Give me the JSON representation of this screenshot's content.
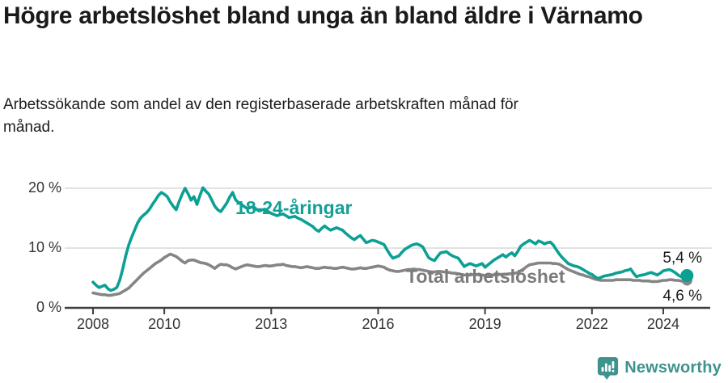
{
  "header": {
    "title": "Högre arbetslöshet bland unga än bland äldre i Värnamo",
    "subtitle": "Arbetssökande som andel av den registerbaserade arbetskraften månad för månad."
  },
  "chart_data": {
    "type": "line",
    "title": "Högre arbetslöshet bland unga än bland äldre i Värnamo",
    "subtitle": "Arbetssökande som andel av den registerbaserade arbetskraften månad för månad.",
    "unit": "%",
    "frequency": "monthly",
    "x_start_year": 2008,
    "x_start_month": 1,
    "x_end_year": 2024,
    "x_end_month": 9,
    "ylim": [
      0,
      21.5
    ],
    "grid": "horizontal",
    "legend_position": "inline-labels",
    "y_ticks": [
      {
        "value": 20,
        "label": "20 %"
      },
      {
        "value": 10,
        "label": "10 %"
      },
      {
        "value": 0,
        "label": "0 %"
      }
    ],
    "x_ticks": [
      {
        "year": 2008,
        "label": "2008"
      },
      {
        "year": 2010,
        "label": "2010"
      },
      {
        "year": 2013,
        "label": "2013"
      },
      {
        "year": 2016,
        "label": "2016"
      },
      {
        "year": 2019,
        "label": "2019"
      },
      {
        "year": 2022,
        "label": "2022"
      },
      {
        "year": 2024,
        "label": "2024"
      }
    ],
    "series": [
      {
        "name": "18-24-åringar",
        "color": "#0CA094",
        "label_color": "#12A096",
        "end_label": "5,4 %",
        "end_value": 5.4,
        "values": [
          4.3,
          3.8,
          3.4,
          3.6,
          3.8,
          3.2,
          2.9,
          3.1,
          3.4,
          4.6,
          6.5,
          8.7,
          10.5,
          11.8,
          13.0,
          14.2,
          15.0,
          15.5,
          15.9,
          16.5,
          17.3,
          18.0,
          18.8,
          19.3,
          19.0,
          18.6,
          17.7,
          17.0,
          16.4,
          17.8,
          19.0,
          20.0,
          19.1,
          18.0,
          18.6,
          17.3,
          18.8,
          20.1,
          19.5,
          19.0,
          18.0,
          17.0,
          16.4,
          16.1,
          16.8,
          17.5,
          18.5,
          19.3,
          18.1,
          17.6,
          17.3,
          16.9,
          16.6,
          16.8,
          16.9,
          16.5,
          16.2,
          16.4,
          16.5,
          16.1,
          15.8,
          15.6,
          15.4,
          15.6,
          15.7,
          15.4,
          15.1,
          15.2,
          15.3,
          15.0,
          14.8,
          14.5,
          14.2,
          13.9,
          13.6,
          13.1,
          12.8,
          13.3,
          13.7,
          13.3,
          13.0,
          13.2,
          13.4,
          13.2,
          13.0,
          12.5,
          12.1,
          11.7,
          11.4,
          11.8,
          12.1,
          11.5,
          10.9,
          11.1,
          11.3,
          11.2,
          11.0,
          10.8,
          10.6,
          9.7,
          8.9,
          8.3,
          8.5,
          8.7,
          9.3,
          9.8,
          10.1,
          10.4,
          10.6,
          10.7,
          10.5,
          10.2,
          9.3,
          8.4,
          8.1,
          7.9,
          8.6,
          9.2,
          9.3,
          9.4,
          9.0,
          8.7,
          8.5,
          8.3,
          7.6,
          6.9,
          7.2,
          7.4,
          7.2,
          7.0,
          7.2,
          7.4,
          6.8,
          7.2,
          7.6,
          8.0,
          8.3,
          8.6,
          8.9,
          8.5,
          8.9,
          9.2,
          8.7,
          9.4,
          10.3,
          10.7,
          11.0,
          11.3,
          11.0,
          10.7,
          11.2,
          11.0,
          10.7,
          10.9,
          11.0,
          10.5,
          9.7,
          9.0,
          8.4,
          7.9,
          7.4,
          7.2,
          7.0,
          6.9,
          6.7,
          6.4,
          6.1,
          5.8,
          5.6,
          5.2,
          4.9,
          5.1,
          5.3,
          5.4,
          5.5,
          5.6,
          5.8,
          5.9,
          6.0,
          6.2,
          6.3,
          6.5,
          5.8,
          5.2,
          5.4,
          5.5,
          5.6,
          5.8,
          5.9,
          5.7,
          5.5,
          5.8,
          6.2,
          6.3,
          6.4,
          6.2,
          5.9,
          5.5,
          5.2,
          5.1,
          5.4
        ]
      },
      {
        "name": "Total arbetslöshet",
        "color": "#858585",
        "label_color": "#7b7b7b",
        "end_label": "4,6 %",
        "end_value": 4.6,
        "values": [
          2.5,
          2.4,
          2.3,
          2.2,
          2.2,
          2.1,
          2.1,
          2.2,
          2.3,
          2.4,
          2.7,
          3.0,
          3.3,
          3.8,
          4.3,
          4.8,
          5.3,
          5.8,
          6.2,
          6.6,
          7.0,
          7.4,
          7.7,
          8.0,
          8.4,
          8.7,
          9.0,
          8.8,
          8.6,
          8.2,
          7.8,
          7.5,
          7.9,
          8.0,
          8.0,
          7.8,
          7.6,
          7.5,
          7.4,
          7.2,
          6.9,
          6.6,
          7.0,
          7.3,
          7.2,
          7.2,
          7.0,
          6.7,
          6.5,
          6.7,
          6.9,
          7.1,
          7.2,
          7.1,
          7.0,
          6.9,
          6.9,
          7.0,
          7.1,
          7.0,
          7.0,
          7.1,
          7.2,
          7.2,
          7.3,
          7.1,
          7.0,
          6.9,
          6.9,
          6.8,
          6.7,
          6.8,
          6.9,
          6.8,
          6.7,
          6.6,
          6.6,
          6.7,
          6.8,
          6.7,
          6.7,
          6.6,
          6.6,
          6.7,
          6.8,
          6.7,
          6.6,
          6.5,
          6.5,
          6.6,
          6.7,
          6.6,
          6.6,
          6.7,
          6.8,
          6.9,
          7.0,
          6.9,
          6.8,
          6.5,
          6.3,
          6.2,
          6.1,
          6.1,
          6.2,
          6.3,
          6.4,
          6.4,
          6.5,
          6.4,
          6.4,
          6.3,
          6.2,
          6.1,
          6.0,
          6.0,
          6.1,
          6.1,
          6.0,
          6.0,
          5.9,
          5.8,
          5.8,
          5.7,
          5.6,
          5.5,
          5.5,
          5.5,
          5.6,
          5.6,
          5.5,
          5.5,
          5.4,
          5.4,
          5.5,
          5.5,
          5.5,
          5.6,
          5.6,
          5.6,
          5.7,
          5.7,
          5.8,
          5.9,
          6.2,
          6.5,
          6.9,
          7.2,
          7.3,
          7.4,
          7.5,
          7.5,
          7.5,
          7.5,
          7.5,
          7.4,
          7.4,
          7.3,
          7.0,
          6.7,
          6.4,
          6.2,
          6.0,
          5.8,
          5.6,
          5.5,
          5.3,
          5.2,
          5.0,
          4.8,
          4.7,
          4.6,
          4.6,
          4.6,
          4.6,
          4.6,
          4.7,
          4.7,
          4.7,
          4.7,
          4.7,
          4.7,
          4.6,
          4.6,
          4.6,
          4.5,
          4.5,
          4.5,
          4.4,
          4.4,
          4.4,
          4.5,
          4.6,
          4.6,
          4.7,
          4.7,
          4.6,
          4.6,
          4.5,
          4.4,
          4.6
        ]
      }
    ],
    "colors": {
      "grid": "#d9d9d9",
      "axis": "#3f3f3f",
      "tick_text": "#333333"
    }
  },
  "footer": {
    "brand": "Newsworthy",
    "logo_icon": "newsworthy-speech-bubble-bar-chart-icon",
    "brand_color": "#3E948D"
  }
}
